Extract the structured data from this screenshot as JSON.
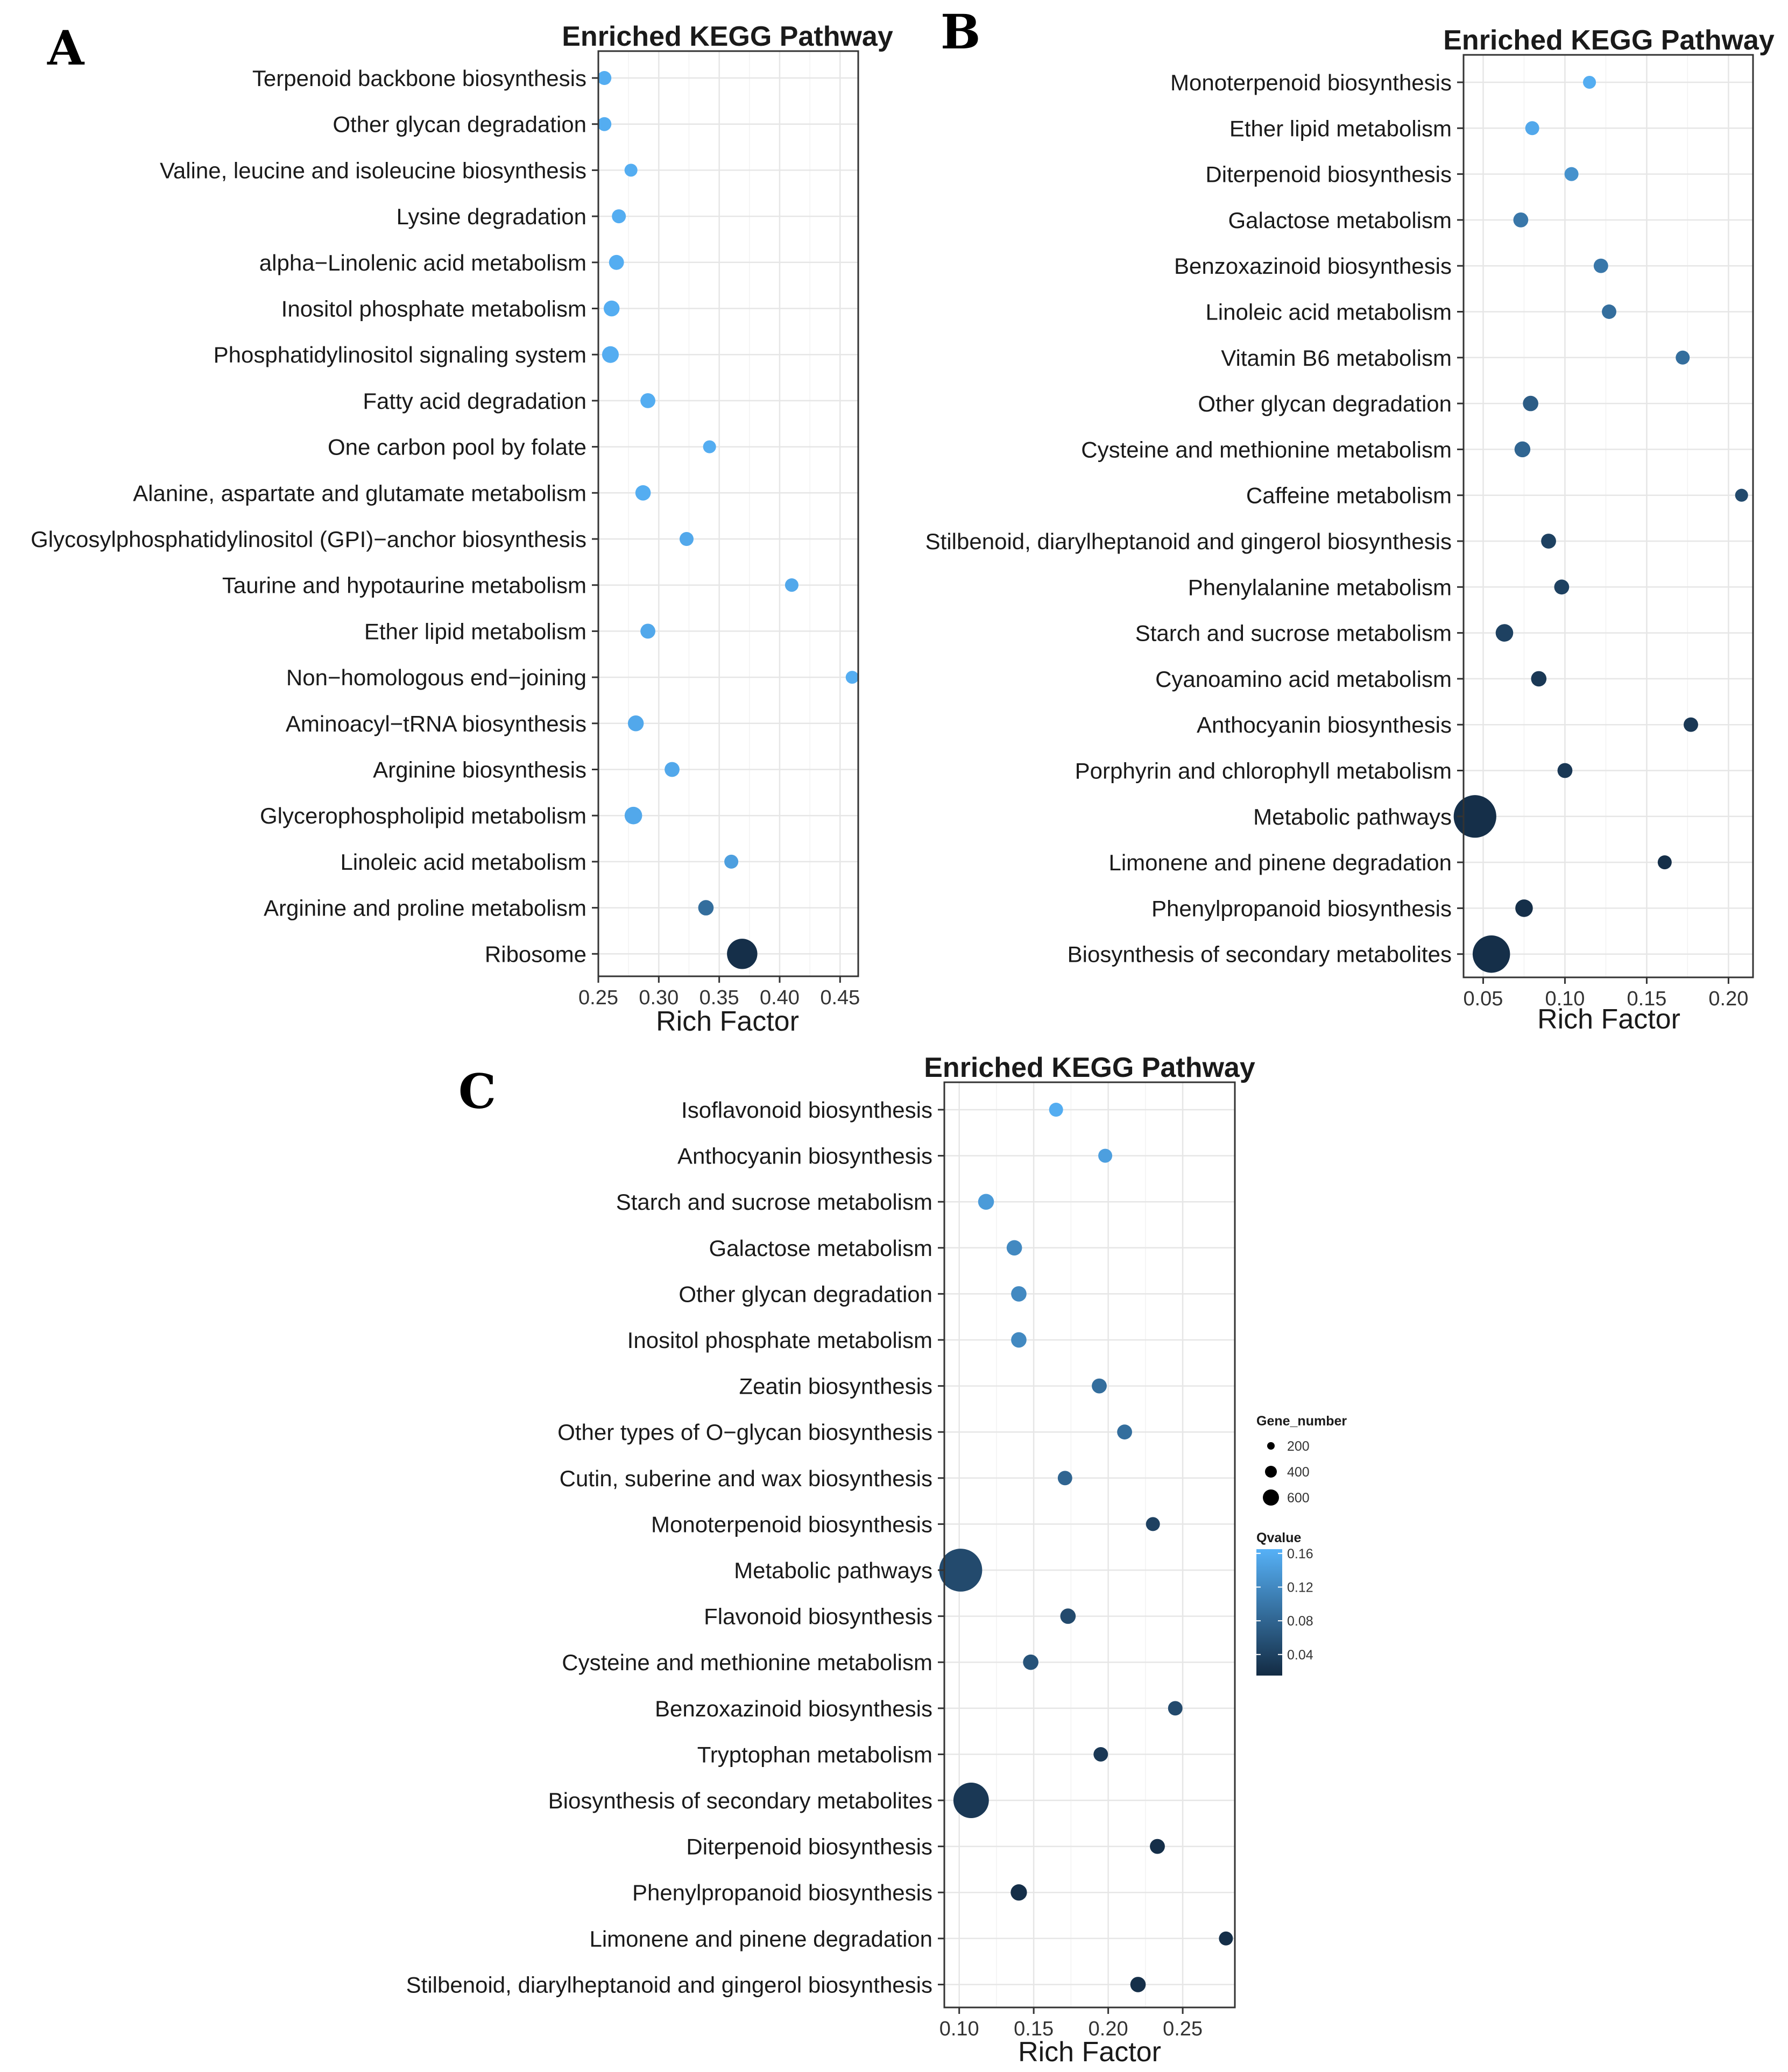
{
  "chart_data": [
    {
      "panel": "A",
      "type": "scatter",
      "title": "Enriched KEGG Pathway",
      "xlabel": "Rich Factor",
      "ylabel": "",
      "xlim": [
        0.25,
        0.465
      ],
      "xticks": [
        0.25,
        0.3,
        0.35,
        0.4,
        0.45
      ],
      "xtick_labels": [
        "0.25",
        "0.30",
        "0.35",
        "0.40",
        "0.45"
      ],
      "categories": [
        "Terpenoid backbone biosynthesis",
        "Other glycan degradation",
        "Valine, leucine and isoleucine biosynthesis",
        "Lysine degradation",
        "alpha−Linolenic acid metabolism",
        "Inositol phosphate metabolism",
        "Phosphatidylinositol signaling system",
        "Fatty acid degradation",
        "One carbon pool by folate",
        "Alanine, aspartate and glutamate metabolism",
        "Glycosylphosphatidylinositol (GPI)−anchor biosynthesis",
        "Taurine and hypotaurine metabolism",
        "Ether lipid metabolism",
        "Non−homologous end−joining",
        "Aminoacyl−tRNA biosynthesis",
        "Arginine biosynthesis",
        "Glycerophospholipid metabolism",
        "Linoleic acid metabolism",
        "Arginine and proline metabolism",
        "Ribosome"
      ],
      "rich_factor": [
        0.255,
        0.255,
        0.277,
        0.267,
        0.265,
        0.261,
        0.26,
        0.291,
        0.342,
        0.287,
        0.323,
        0.41,
        0.291,
        0.46,
        0.281,
        0.311,
        0.279,
        0.36,
        0.339,
        0.369
      ],
      "gene_number": [
        70,
        70,
        60,
        70,
        80,
        90,
        100,
        80,
        60,
        85,
        70,
        65,
        80,
        60,
        90,
        80,
        110,
        70,
        85,
        330
      ],
      "qvalue": [
        0.16,
        0.16,
        0.16,
        0.16,
        0.16,
        0.16,
        0.16,
        0.16,
        0.16,
        0.16,
        0.155,
        0.155,
        0.155,
        0.16,
        0.155,
        0.155,
        0.155,
        0.145,
        0.09,
        0.02
      ]
    },
    {
      "panel": "B",
      "type": "scatter",
      "title": "Enriched KEGG Pathway",
      "xlabel": "Rich Factor",
      "ylabel": "",
      "xlim": [
        0.038,
        0.215
      ],
      "xticks": [
        0.05,
        0.1,
        0.15,
        0.2
      ],
      "xtick_labels": [
        "0.05",
        "0.10",
        "0.15",
        "0.20"
      ],
      "categories": [
        "Monoterpenoid biosynthesis",
        "Ether lipid metabolism",
        "Diterpenoid biosynthesis",
        "Galactose metabolism",
        "Benzoxazinoid biosynthesis",
        "Linoleic acid metabolism",
        "Vitamin B6 metabolism",
        "Other glycan degradation",
        "Cysteine and methionine metabolism",
        "Caffeine metabolism",
        "Stilbenoid, diarylheptanoid and gingerol biosynthesis",
        "Phenylalanine metabolism",
        "Starch and sucrose metabolism",
        "Cyanoamino acid metabolism",
        "Anthocyanin biosynthesis",
        "Porphyrin and chlorophyll metabolism",
        "Metabolic pathways",
        "Limonene and pinene degradation",
        "Phenylpropanoid biosynthesis",
        "Biosynthesis of secondary metabolites"
      ],
      "rich_factor": [
        0.115,
        0.08,
        0.104,
        0.073,
        0.122,
        0.127,
        0.172,
        0.079,
        0.074,
        0.208,
        0.09,
        0.098,
        0.063,
        0.084,
        0.177,
        0.1,
        0.045,
        0.161,
        0.075,
        0.055
      ],
      "gene_number": [
        60,
        70,
        70,
        80,
        75,
        75,
        70,
        85,
        90,
        60,
        80,
        80,
        110,
        85,
        75,
        80,
        650,
        70,
        110,
        500
      ],
      "qvalue": [
        0.16,
        0.155,
        0.13,
        0.1,
        0.1,
        0.09,
        0.09,
        0.07,
        0.08,
        0.05,
        0.04,
        0.04,
        0.04,
        0.03,
        0.03,
        0.03,
        0.02,
        0.02,
        0.02,
        0.02
      ]
    },
    {
      "panel": "C",
      "type": "scatter",
      "title": "Enriched KEGG Pathway",
      "xlabel": "Rich Factor",
      "ylabel": "",
      "xlim": [
        0.09,
        0.285
      ],
      "xticks": [
        0.1,
        0.15,
        0.2,
        0.25
      ],
      "xtick_labels": [
        "0.10",
        "0.15",
        "0.20",
        "0.25"
      ],
      "categories": [
        "Isoflavonoid biosynthesis",
        "Anthocyanin biosynthesis",
        "Starch and sucrose metabolism",
        "Galactose metabolism",
        "Other glycan degradation",
        "Inositol phosphate metabolism",
        "Zeatin biosynthesis",
        "Other types of O−glycan biosynthesis",
        "Cutin, suberine and wax biosynthesis",
        "Monoterpenoid biosynthesis",
        "Metabolic pathways",
        "Flavonoid biosynthesis",
        "Cysteine and methionine metabolism",
        "Benzoxazinoid biosynthesis",
        "Tryptophan metabolism",
        "Biosynthesis of secondary metabolites",
        "Diterpenoid biosynthesis",
        "Phenylpropanoid biosynthesis",
        "Limonene and pinene degradation",
        "Stilbenoid, diarylheptanoid and gingerol biosynthesis"
      ],
      "rich_factor": [
        0.165,
        0.198,
        0.118,
        0.137,
        0.14,
        0.14,
        0.194,
        0.211,
        0.171,
        0.23,
        0.101,
        0.173,
        0.148,
        0.245,
        0.195,
        0.108,
        0.233,
        0.14,
        0.279,
        0.22
      ],
      "gene_number": [
        70,
        70,
        90,
        85,
        85,
        85,
        80,
        80,
        75,
        70,
        660,
        85,
        85,
        75,
        75,
        450,
        80,
        95,
        70,
        85
      ],
      "qvalue": [
        0.16,
        0.145,
        0.14,
        0.12,
        0.12,
        0.12,
        0.09,
        0.09,
        0.08,
        0.04,
        0.05,
        0.05,
        0.06,
        0.05,
        0.03,
        0.03,
        0.02,
        0.02,
        0.02,
        0.02
      ]
    }
  ],
  "legend": {
    "size_title": "Gene_number",
    "sizes": [
      200,
      400,
      600
    ],
    "size_labels": [
      "200",
      "400",
      "600"
    ],
    "color_title": "Qvalue",
    "color_ticks": [
      0.16,
      0.12,
      0.08,
      0.04
    ],
    "color_tick_labels": [
      "0.16",
      "0.12",
      "0.08",
      "0.04"
    ],
    "qmin": 0.015,
    "qmax": 0.165,
    "color_low": "#132b43",
    "color_high": "#56b1f7"
  },
  "colors": {
    "grid": "#ebebeb",
    "frame": "#333333",
    "text": "#1a1a1a"
  }
}
